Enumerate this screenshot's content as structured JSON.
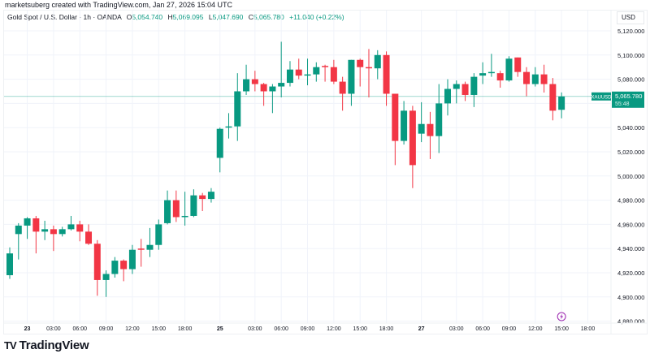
{
  "attribution": "marketsuberg created with TradingView.com, Jan 27, 2026 15:04 UTC",
  "legend": {
    "symbol_title": "Gold Spot / U.S. Dollar · 1h · OANDA",
    "open_label": "O",
    "open": "5,054.740",
    "high_label": "H",
    "high": "5,069.095",
    "low_label": "L",
    "low": "5,047.690",
    "close_label": "C",
    "close": "5,065.780",
    "change": "+11.040 (+0.22%)"
  },
  "currency": "USD",
  "last_price": {
    "ticker": "XAUUSD",
    "price": "5,065.780",
    "countdown": "55:48",
    "value": 5065.78
  },
  "logo_text": "TradingView",
  "event_icon": "lightning-icon",
  "colors": {
    "up": "#089981",
    "down": "#f23645",
    "grid": "#f0f3fa",
    "price_line": "#089981",
    "event": "#9c27b0"
  },
  "chart_data": {
    "type": "candlestick",
    "title": "Gold Spot / U.S. Dollar · 1h · OANDA",
    "xlabel": "",
    "ylabel": "",
    "ylim": [
      4880,
      5120
    ],
    "grid": true,
    "y_ticks": [
      "5,120.000",
      "5,100.000",
      "5,080.000",
      "5,060.000",
      "5,040.000",
      "5,020.000",
      "5,000.000",
      "4,980.000",
      "4,960.000",
      "4,940.000",
      "4,920.000",
      "4,900.000",
      "4,880.000"
    ],
    "x_ticks": [
      {
        "label": "23",
        "time": "01-23 00:00"
      },
      {
        "label": "03:00",
        "time": "01-23 03:00"
      },
      {
        "label": "06:00",
        "time": "01-23 06:00"
      },
      {
        "label": "09:00",
        "time": "01-23 09:00"
      },
      {
        "label": "12:00",
        "time": "01-23 12:00"
      },
      {
        "label": "15:00",
        "time": "01-23 15:00"
      },
      {
        "label": "18:00",
        "time": "01-23 18:00"
      },
      {
        "label": "25",
        "time": "01-25 23:00"
      },
      {
        "label": "03:00",
        "time": "01-26 03:00"
      },
      {
        "label": "06:00",
        "time": "01-26 06:00"
      },
      {
        "label": "09:00",
        "time": "01-26 09:00"
      },
      {
        "label": "12:00",
        "time": "01-26 12:00"
      },
      {
        "label": "15:00",
        "time": "01-26 15:00"
      },
      {
        "label": "18:00",
        "time": "01-26 18:00"
      },
      {
        "label": "27",
        "time": "01-26 23:00"
      },
      {
        "label": "03:00",
        "time": "01-27 03:00"
      },
      {
        "label": "06:00",
        "time": "01-27 06:00"
      },
      {
        "label": "09:00",
        "time": "01-27 09:00"
      },
      {
        "label": "12:00",
        "time": "01-27 12:00"
      },
      {
        "label": "15:00",
        "time": "01-27 15:00"
      },
      {
        "label": "18:00",
        "time": "01-27 18:00"
      }
    ],
    "columns": [
      "time",
      "open",
      "high",
      "low",
      "close"
    ],
    "candles": [
      [
        "01-22 21:00",
        4918,
        4941,
        4915,
        4936
      ],
      [
        "01-22 23:00",
        4952,
        4961,
        4931,
        4959
      ],
      [
        "01-23 00:00",
        4959,
        4966,
        4948,
        4965
      ],
      [
        "01-23 01:00",
        4965,
        4967,
        4936,
        4954
      ],
      [
        "01-23 02:00",
        4954,
        4963,
        4947,
        4956
      ],
      [
        "01-23 03:00",
        4956,
        4959,
        4938,
        4952
      ],
      [
        "01-23 04:00",
        4952,
        4958,
        4950,
        4956
      ],
      [
        "01-23 05:00",
        4956,
        4967,
        4955,
        4960
      ],
      [
        "01-23 06:00",
        4960,
        4963,
        4946,
        4954
      ],
      [
        "01-23 07:00",
        4954,
        4960,
        4943,
        4944
      ],
      [
        "01-23 08:00",
        4944,
        4947,
        4901,
        4914
      ],
      [
        "01-23 09:00",
        4914,
        4922,
        4900,
        4919
      ],
      [
        "01-23 10:00",
        4919,
        4933,
        4916,
        4930
      ],
      [
        "01-23 11:00",
        4930,
        4931,
        4913,
        4923
      ],
      [
        "01-23 12:00",
        4923,
        4943,
        4919,
        4939
      ],
      [
        "01-23 13:00",
        4940,
        4948,
        4925,
        4939
      ],
      [
        "01-23 14:00",
        4939,
        4957,
        4933,
        4943
      ],
      [
        "01-23 15:00",
        4943,
        4964,
        4939,
        4960
      ],
      [
        "01-23 16:00",
        4961,
        4988,
        4960,
        4980
      ],
      [
        "01-23 17:00",
        4980,
        4988,
        4962,
        4966
      ],
      [
        "01-23 18:00",
        4966,
        4987,
        4959,
        4967
      ],
      [
        "01-23 19:00",
        4967,
        4989,
        4966,
        4984
      ],
      [
        "01-23 20:00",
        4984,
        4986,
        4971,
        4981
      ],
      [
        "01-23 21:00",
        4981,
        4990,
        4978,
        4987
      ],
      [
        "01-25 23:00",
        5015,
        5040,
        5003,
        5039
      ],
      [
        "01-26 00:00",
        5040,
        5052,
        5031,
        5041
      ],
      [
        "01-26 01:00",
        5041,
        5085,
        5029,
        5070
      ],
      [
        "01-26 02:00",
        5070,
        5092,
        5067,
        5080
      ],
      [
        "01-26 03:00",
        5080,
        5087,
        5070,
        5076
      ],
      [
        "01-26 04:00",
        5076,
        5077,
        5058,
        5070
      ],
      [
        "01-26 05:00",
        5070,
        5076,
        5052,
        5074
      ],
      [
        "01-26 06:00",
        5074,
        5111,
        5065,
        5077
      ],
      [
        "01-26 07:00",
        5077,
        5095,
        5074,
        5088
      ],
      [
        "01-26 08:00",
        5088,
        5097,
        5080,
        5083
      ],
      [
        "01-26 09:00",
        5083,
        5097,
        5075,
        5084
      ],
      [
        "01-26 10:00",
        5084,
        5094,
        5078,
        5090
      ],
      [
        "01-26 11:00",
        5091,
        5092,
        5078,
        5090
      ],
      [
        "01-26 12:00",
        5090,
        5096,
        5076,
        5078
      ],
      [
        "01-26 13:00",
        5078,
        5082,
        5054,
        5068
      ],
      [
        "01-26 14:00",
        5068,
        5096,
        5058,
        5096
      ],
      [
        "01-26 15:00",
        5096,
        5097,
        5074,
        5090
      ],
      [
        "01-26 16:00",
        5090,
        5105,
        5065,
        5089
      ],
      [
        "01-26 17:00",
        5089,
        5104,
        5080,
        5100
      ],
      [
        "01-26 18:00",
        5100,
        5103,
        5058,
        5068
      ],
      [
        "01-26 19:00",
        5068,
        5068,
        5009,
        5029
      ],
      [
        "01-26 20:00",
        5029,
        5062,
        5026,
        5054
      ],
      [
        "01-26 21:00",
        5054,
        5058,
        4990,
        5009
      ],
      [
        "01-26 23:00",
        5035,
        5061,
        5028,
        5043
      ],
      [
        "01-27 00:00",
        5043,
        5053,
        5014,
        5033
      ],
      [
        "01-27 01:00",
        5033,
        5076,
        5019,
        5060
      ],
      [
        "01-27 02:00",
        5060,
        5080,
        5050,
        5072
      ],
      [
        "01-27 03:00",
        5072,
        5079,
        5060,
        5076
      ],
      [
        "01-27 04:00",
        5076,
        5078,
        5062,
        5067
      ],
      [
        "01-27 05:00",
        5067,
        5085,
        5057,
        5082
      ],
      [
        "01-27 06:00",
        5083,
        5094,
        5076,
        5085
      ],
      [
        "01-27 07:00",
        5085,
        5101,
        5082,
        5086
      ],
      [
        "01-27 08:00",
        5085,
        5087,
        5073,
        5079
      ],
      [
        "01-27 09:00",
        5079,
        5099,
        5078,
        5097
      ],
      [
        "01-27 10:00",
        5098,
        5098,
        5082,
        5086
      ],
      [
        "01-27 11:00",
        5086,
        5090,
        5066,
        5076
      ],
      [
        "01-27 12:00",
        5076,
        5090,
        5074,
        5084
      ],
      [
        "01-27 13:00",
        5084,
        5092,
        5069,
        5076
      ],
      [
        "01-27 14:00",
        5076,
        5081,
        5046,
        5054
      ],
      [
        "01-27 15:00",
        5054.74,
        5069.095,
        5047.69,
        5065.78
      ]
    ]
  }
}
